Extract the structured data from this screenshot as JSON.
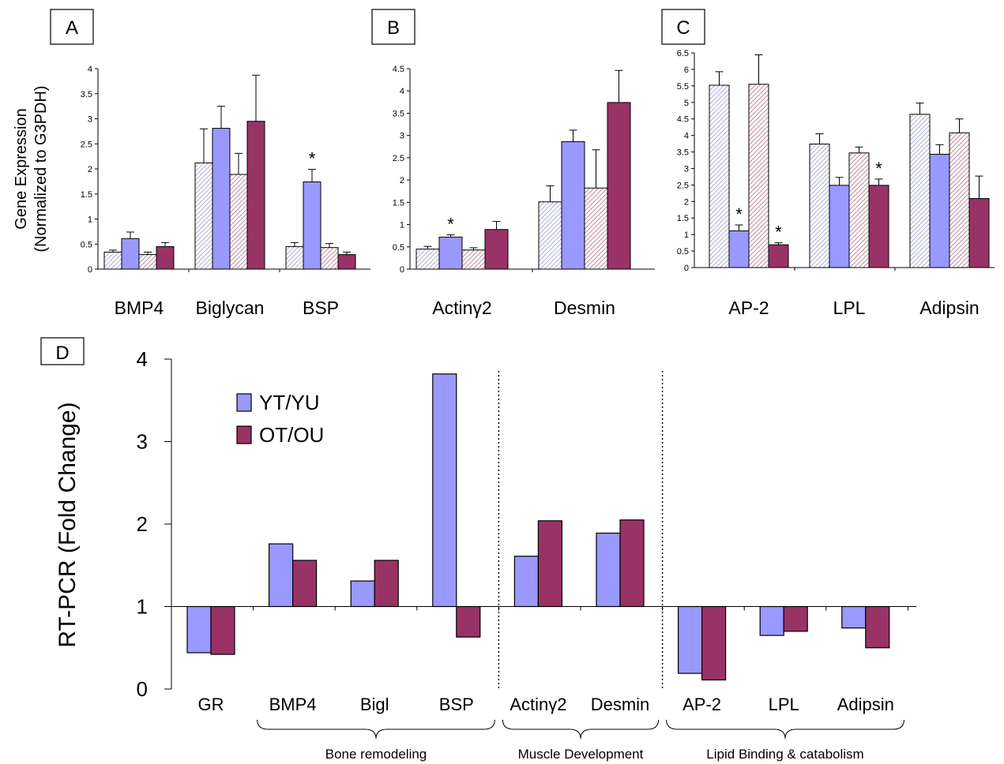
{
  "colors": {
    "young": "#9999ff",
    "old": "#993366",
    "young_hatch": "#9999cc",
    "old_hatch": "#b06a85",
    "axis": "#000000"
  },
  "chart_data": [
    {
      "panel": "A",
      "type": "bar",
      "ylabel_line1": "Gene Expression",
      "ylabel_line2": "(Normalized to G3PDH)",
      "ylim": [
        0,
        4
      ],
      "yticks": [
        "0",
        "0.5",
        "1",
        "1.5",
        "2",
        "2.5",
        "3",
        "3.5",
        "4"
      ],
      "categories": [
        "BMP4",
        "Biglycan",
        "BSP"
      ],
      "series": [
        {
          "values": [
            0.34,
            2.12,
            0.45
          ],
          "errors": [
            0.04,
            0.68,
            0.08
          ],
          "fill": "young",
          "hatched": true
        },
        {
          "values": [
            0.61,
            2.81,
            1.74
          ],
          "errors": [
            0.13,
            0.44,
            0.25
          ],
          "fill": "young",
          "hatched": false
        },
        {
          "values": [
            0.29,
            1.89,
            0.43
          ],
          "errors": [
            0.05,
            0.42,
            0.08
          ],
          "fill": "old",
          "hatched": true
        },
        {
          "values": [
            0.45,
            2.95,
            0.29
          ],
          "errors": [
            0.08,
            0.92,
            0.05
          ],
          "fill": "old",
          "hatched": false
        }
      ],
      "annotations": [
        {
          "category": 2,
          "series": 1,
          "text": "*"
        }
      ]
    },
    {
      "panel": "B",
      "type": "bar",
      "ylim": [
        0,
        4.5
      ],
      "yticks": [
        "0",
        "0.5",
        "1",
        "1.5",
        "2",
        "2.5",
        "3",
        "3.5",
        "4",
        "4.5"
      ],
      "categories": [
        "Actinγ2",
        "Desmin"
      ],
      "series": [
        {
          "values": [
            0.45,
            1.51
          ],
          "errors": [
            0.06,
            0.36
          ],
          "fill": "young",
          "hatched": true
        },
        {
          "values": [
            0.72,
            2.86
          ],
          "errors": [
            0.05,
            0.26
          ],
          "fill": "young",
          "hatched": false
        },
        {
          "values": [
            0.43,
            1.82
          ],
          "errors": [
            0.05,
            0.86
          ],
          "fill": "old",
          "hatched": true
        },
        {
          "values": [
            0.89,
            3.74
          ],
          "errors": [
            0.18,
            0.72
          ],
          "fill": "old",
          "hatched": false
        }
      ],
      "annotations": [
        {
          "category": 0,
          "series": 1,
          "text": "*"
        }
      ]
    },
    {
      "panel": "C",
      "type": "bar",
      "ylim": [
        0,
        6.5
      ],
      "yticks": [
        "0",
        "0.5",
        "1",
        "1.5",
        "2",
        "2.5",
        "3",
        "3.5",
        "4",
        "4.5",
        "5",
        "5.5",
        "6",
        "6.5"
      ],
      "categories": [
        "AP-2",
        "LPL",
        "Adipsin"
      ],
      "series": [
        {
          "values": [
            5.52,
            3.74,
            4.64
          ],
          "errors": [
            0.41,
            0.31,
            0.34
          ],
          "fill": "young",
          "hatched": true
        },
        {
          "values": [
            1.11,
            2.49,
            3.43
          ],
          "errors": [
            0.18,
            0.24,
            0.29
          ],
          "fill": "young",
          "hatched": false
        },
        {
          "values": [
            5.55,
            3.47,
            4.08
          ],
          "errors": [
            0.89,
            0.18,
            0.42
          ],
          "fill": "old",
          "hatched": true
        },
        {
          "values": [
            0.69,
            2.49,
            2.09
          ],
          "errors": [
            0.06,
            0.19,
            0.68
          ],
          "fill": "old",
          "hatched": false
        }
      ],
      "annotations": [
        {
          "category": 0,
          "series": 1,
          "text": "*"
        },
        {
          "category": 0,
          "series": 3,
          "text": "*"
        },
        {
          "category": 1,
          "series": 3,
          "text": "*"
        }
      ]
    },
    {
      "panel": "D",
      "type": "bar",
      "ylabel": "RT-PCR (Fold Change)",
      "ylim": [
        0,
        4
      ],
      "baseline": 1,
      "yticks": [
        "0",
        "1",
        "2",
        "3",
        "4"
      ],
      "categories": [
        "GR",
        "BMP4",
        "Bigl",
        "BSP",
        "Actinγ2",
        "Desmin",
        "AP-2",
        "LPL",
        "Adipsin"
      ],
      "series": [
        {
          "name": "YT/YU",
          "fill": "young",
          "values": [
            0.44,
            1.76,
            1.31,
            3.82,
            1.61,
            1.89,
            0.19,
            0.65,
            0.74
          ]
        },
        {
          "name": "OT/OU",
          "fill": "old",
          "values": [
            0.42,
            1.56,
            1.56,
            0.63,
            2.04,
            2.05,
            0.11,
            0.7,
            0.5
          ]
        }
      ],
      "groups": [
        {
          "label": "Bone remodeling",
          "from": 1,
          "to": 3
        },
        {
          "label": "Muscle Development",
          "from": 4,
          "to": 5
        },
        {
          "label": "Lipid Binding & catabolism",
          "from": 6,
          "to": 8
        }
      ],
      "separators_after": [
        3,
        5
      ]
    }
  ]
}
